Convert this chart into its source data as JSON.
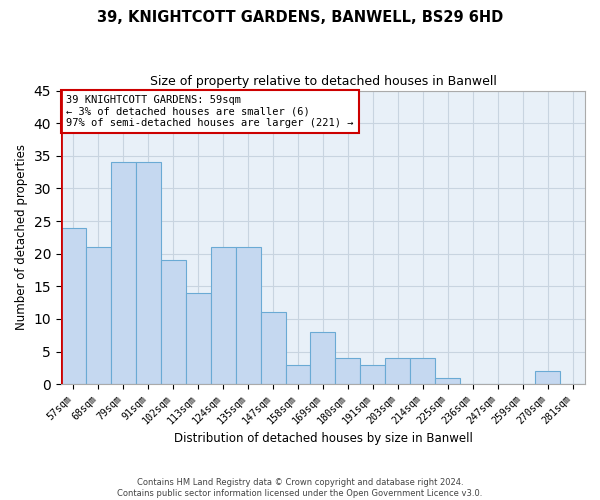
{
  "title": "39, KNIGHTCOTT GARDENS, BANWELL, BS29 6HD",
  "subtitle": "Size of property relative to detached houses in Banwell",
  "xlabel": "Distribution of detached houses by size in Banwell",
  "ylabel": "Number of detached properties",
  "bar_labels": [
    "57sqm",
    "68sqm",
    "79sqm",
    "91sqm",
    "102sqm",
    "113sqm",
    "124sqm",
    "135sqm",
    "147sqm",
    "158sqm",
    "169sqm",
    "180sqm",
    "191sqm",
    "203sqm",
    "214sqm",
    "225sqm",
    "236sqm",
    "247sqm",
    "259sqm",
    "270sqm",
    "281sqm"
  ],
  "bar_values": [
    24,
    21,
    34,
    34,
    19,
    14,
    21,
    21,
    11,
    3,
    8,
    4,
    3,
    4,
    4,
    1,
    0,
    0,
    0,
    2,
    0
  ],
  "bar_color": "#c5d8f0",
  "bar_edge_color": "#6aaad4",
  "plot_bg_color": "#e8f0f8",
  "annotation_box_color": "#ffffff",
  "annotation_border_color": "#cc0000",
  "annotation_line1": "39 KNIGHTCOTT GARDENS: 59sqm",
  "annotation_line2": "← 3% of detached houses are smaller (6)",
  "annotation_line3": "97% of semi-detached houses are larger (221) →",
  "ylim": [
    0,
    45
  ],
  "yticks": [
    0,
    5,
    10,
    15,
    20,
    25,
    30,
    35,
    40,
    45
  ],
  "footer1": "Contains HM Land Registry data © Crown copyright and database right 2024.",
  "footer2": "Contains public sector information licensed under the Open Government Licence v3.0.",
  "background_color": "#ffffff",
  "grid_color": "#c8d4e0",
  "red_line_color": "#cc0000"
}
